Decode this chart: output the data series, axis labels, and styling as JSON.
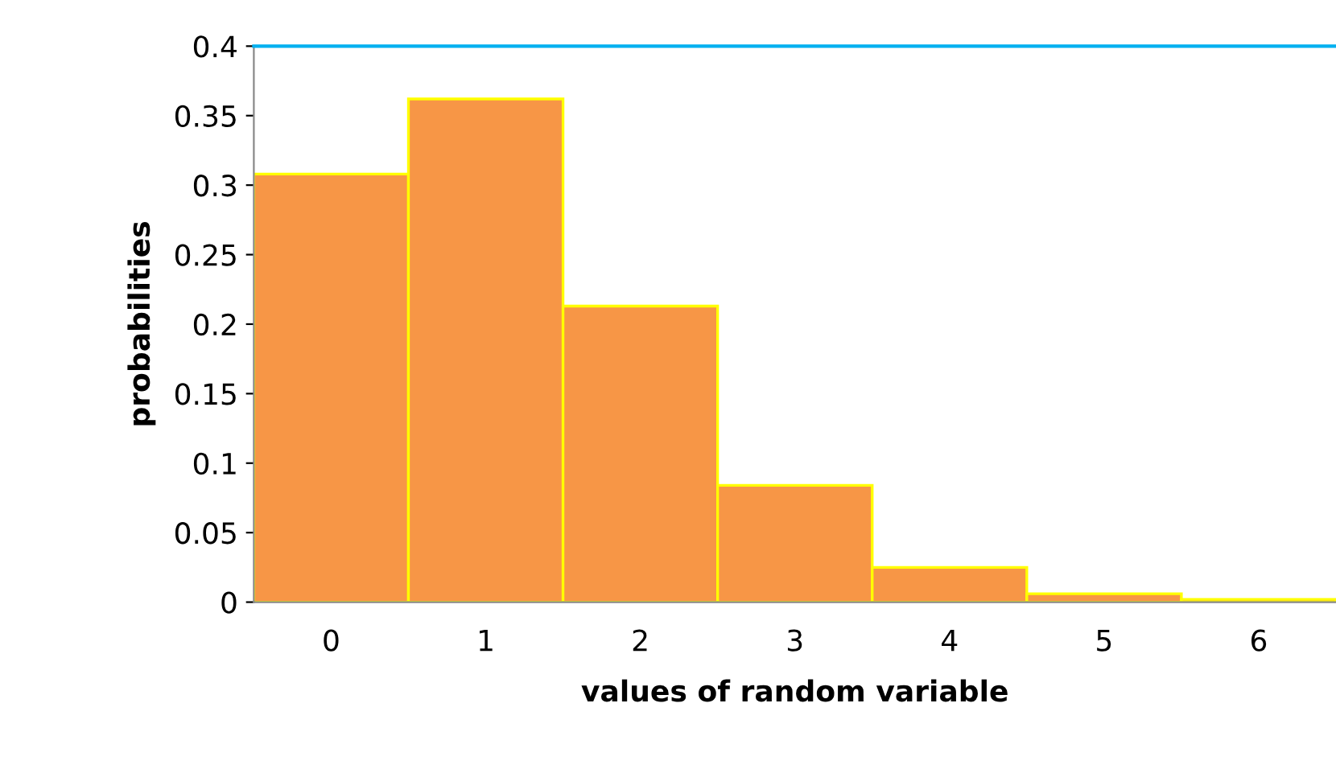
{
  "chart_data": {
    "type": "bar",
    "xlabel": "values of random variable",
    "ylabel": "probabilities",
    "categories": [
      "0",
      "1",
      "2",
      "3",
      "4",
      "5",
      "6"
    ],
    "values": [
      0.308,
      0.362,
      0.213,
      0.084,
      0.025,
      0.006,
      0.002
    ],
    "color": "#f79646",
    "ylim": [
      0,
      0.4
    ],
    "yticks": [
      0,
      {
        "value": 0.05,
        "label": "0.05"
      },
      {
        "value": 0.1,
        "label": "0.1"
      },
      {
        "value": 0.15,
        "label": "0.15"
      },
      {
        "value": 0.2,
        "label": "0.2"
      },
      {
        "value": 0.25,
        "label": "0.25"
      },
      {
        "value": 0.3,
        "label": "0.3"
      },
      {
        "value": 0.35,
        "label": "0.35"
      },
      {
        "value": 0.4,
        "label": "0.4"
      }
    ],
    "ref_lines": [
      {
        "axis": "y",
        "value": 0.4,
        "color": "#00b0f0"
      }
    ],
    "grid": false,
    "legend": false
  }
}
